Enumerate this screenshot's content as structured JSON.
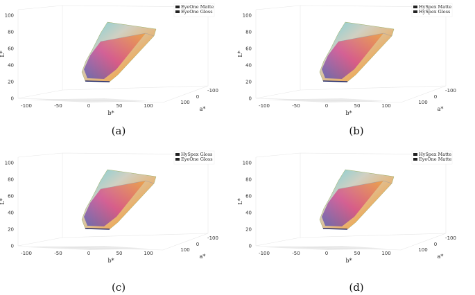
{
  "panels": [
    {
      "id": "a",
      "caption": "(a)",
      "legend": [
        "EyeOne Matte",
        "EyeOne Gloss"
      ]
    },
    {
      "id": "b",
      "caption": "(b)",
      "legend": [
        "HySpex Matte",
        "HySpex Gloss"
      ]
    },
    {
      "id": "c",
      "caption": "(c)",
      "legend": [
        "HySpex Gloss",
        "EyeOne Gloss"
      ]
    },
    {
      "id": "d",
      "caption": "(d)",
      "legend": [
        "HySpex Matte",
        "EyeOne Matte"
      ]
    }
  ],
  "axes": {
    "l_label": "L*",
    "b_label": "b*",
    "a_label": "a*",
    "l_ticks": [
      "0",
      "20",
      "40",
      "60",
      "80",
      "100"
    ],
    "b_ticks": [
      "-100",
      "-50",
      "0",
      "50",
      "100"
    ],
    "a_ticks": [
      "-100",
      "0",
      "100"
    ]
  },
  "colors": {
    "legend_swatch": "#222222",
    "gamut_top": "#c9c8b8",
    "gamut_blue": "#3b49b8",
    "gamut_magenta": "#d2358a",
    "gamut_green": "#7fd33a",
    "gamut_orange": "#f0962e",
    "gamut_cyan": "#55c8d6"
  }
}
